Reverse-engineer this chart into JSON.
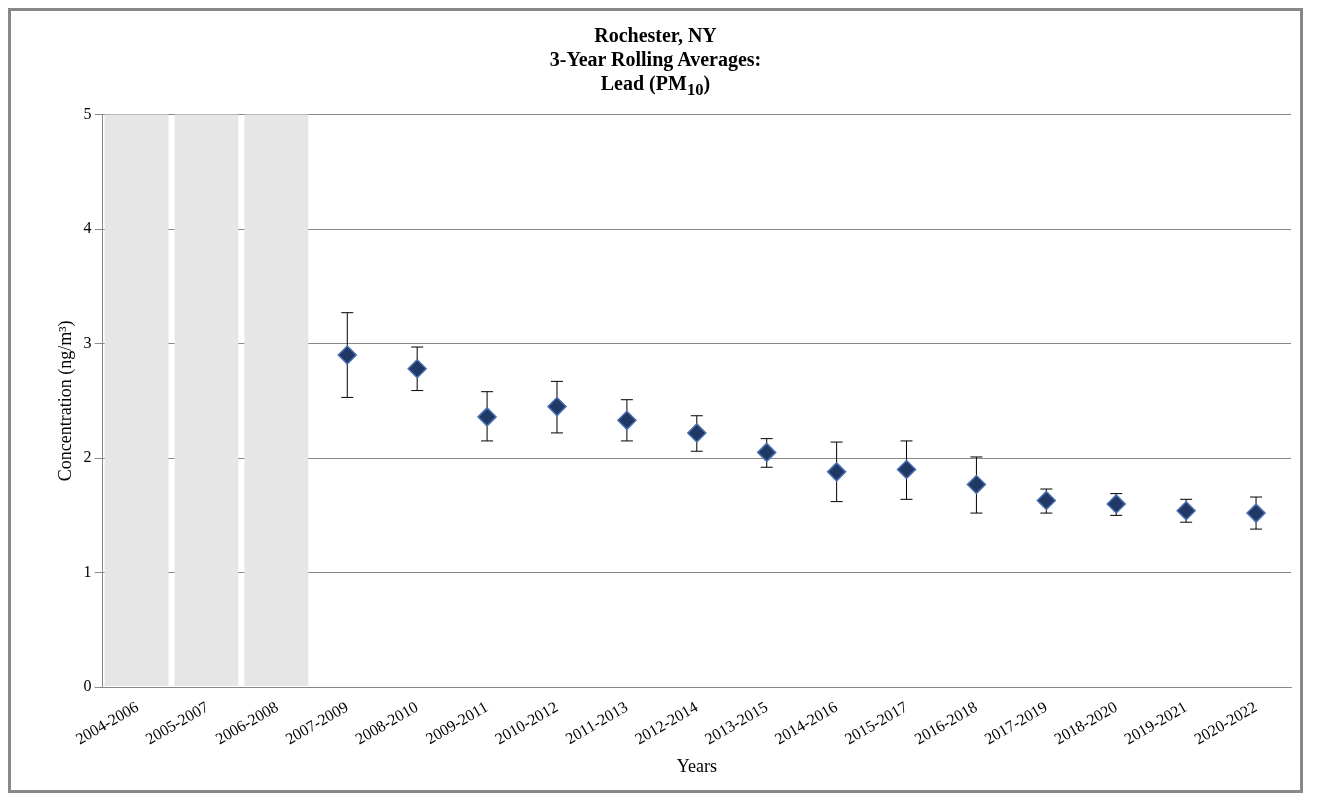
{
  "chart_data": {
    "type": "scatter",
    "title": "Rochester, NY\n3-Year Rolling Averages:\nLead (PM$_{10}$)",
    "xlabel": "Years",
    "ylabel": "Concentration (ng/m³)",
    "categories": [
      "2004-2006",
      "2005-2007",
      "2006-2008",
      "2007-2009",
      "2008-2010",
      "2009-2011",
      "2010-2012",
      "2011-2013",
      "2012-2014",
      "2013-2015",
      "2014-2016",
      "2015-2017",
      "2016-2018",
      "2017-2019",
      "2018-2020",
      "2019-2021",
      "2020-2022"
    ],
    "series": [
      {
        "color": "#1f3864",
        "values": [
          null,
          null,
          null,
          2.9,
          2.78,
          2.36,
          2.45,
          2.33,
          2.22,
          2.05,
          1.88,
          1.9,
          1.77,
          1.63,
          1.6,
          1.54,
          1.52
        ],
        "errors": [
          null,
          null,
          null,
          [
            2.53,
            3.27
          ],
          [
            2.59,
            2.97
          ],
          [
            2.15,
            2.58
          ],
          [
            2.22,
            2.67
          ],
          [
            2.15,
            2.51
          ],
          [
            2.06,
            2.37
          ],
          [
            1.92,
            2.17
          ],
          [
            1.62,
            2.14
          ],
          [
            1.64,
            2.15
          ],
          [
            1.52,
            2.01
          ],
          [
            1.52,
            1.73
          ],
          [
            1.5,
            1.69
          ],
          [
            1.44,
            1.64
          ],
          [
            1.38,
            1.66
          ]
        ]
      }
    ],
    "bands": [
      {
        "axis": "x",
        "from": "2004-2006",
        "to": "2004-2006",
        "color": "#e6e6e6"
      },
      {
        "axis": "x",
        "from": "2005-2007",
        "to": "2005-2007",
        "color": "#e6e6e6"
      },
      {
        "axis": "x",
        "from": "2006-2008",
        "to": "2006-2008",
        "color": "#e6e6e6"
      }
    ],
    "ylim": [
      0,
      5
    ],
    "yticks": [
      0,
      1,
      2,
      3,
      4,
      5
    ],
    "grid": "y",
    "marker": "diamond"
  }
}
